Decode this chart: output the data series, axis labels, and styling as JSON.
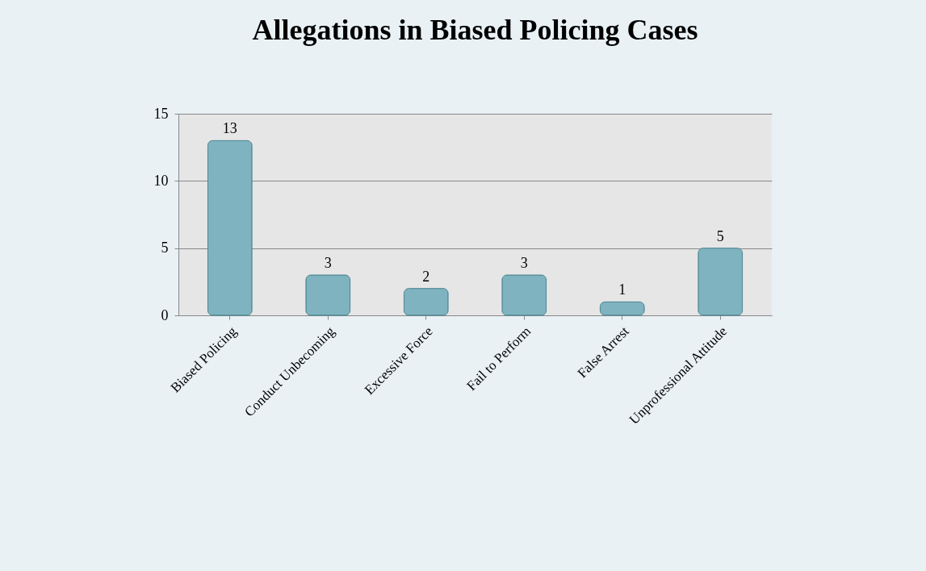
{
  "chart_data": {
    "type": "bar",
    "title": "Allegations in Biased Policing Cases",
    "categories": [
      "Biased Policing",
      "Conduct Unbecoming",
      "Excessive Force",
      "Fail to Perform",
      "False Arrest",
      "Unprofessional Attitude"
    ],
    "values": [
      13,
      3,
      2,
      3,
      1,
      5
    ],
    "color": "#7fb3bf",
    "ylim": [
      0,
      15
    ],
    "yticks": [
      0,
      5,
      10,
      15
    ],
    "grid": "y",
    "data_labels": true
  }
}
